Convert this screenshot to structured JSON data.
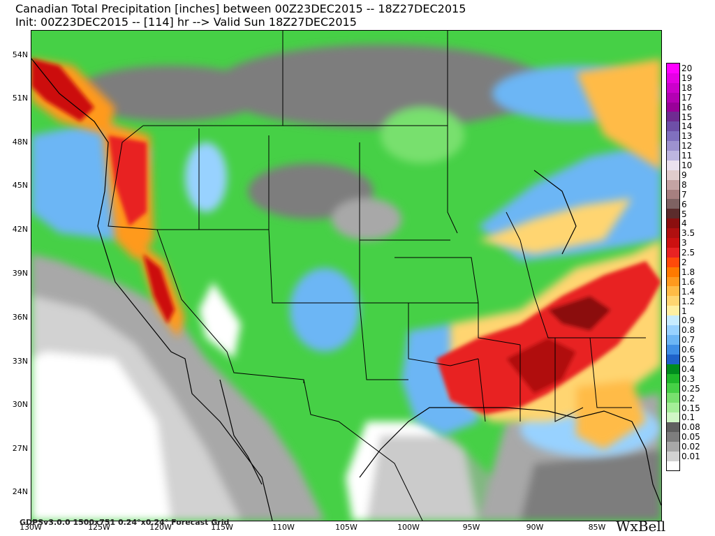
{
  "title_line1": "Canadian Total Precipitation [inches] between 00Z23DEC2015 -- 18Z27DEC2015",
  "title_line2": "Init: 00Z23DEC2015 -- [114] hr --> Valid Sun 18Z27DEC2015",
  "footer": "GDPSv3.0.0  1500x751  0.24°x0.24° Forecast Grid",
  "brand": "WxBell",
  "lat_labels": [
    "54N",
    "51N",
    "48N",
    "45N",
    "42N",
    "39N",
    "36N",
    "33N",
    "30N",
    "27N",
    "24N"
  ],
  "lon_labels": [
    "130W",
    "125W",
    "120W",
    "115W",
    "110W",
    "105W",
    "100W",
    "95W",
    "90W",
    "85W"
  ],
  "legend": [
    {
      "label": "20",
      "color": "#ff00ff"
    },
    {
      "label": "19",
      "color": "#e500e5"
    },
    {
      "label": "18",
      "color": "#cc00cc"
    },
    {
      "label": "17",
      "color": "#b300b3"
    },
    {
      "label": "16",
      "color": "#990099"
    },
    {
      "label": "15",
      "color": "#6f2b92"
    },
    {
      "label": "14",
      "color": "#6e4fa8"
    },
    {
      "label": "13",
      "color": "#8070be"
    },
    {
      "label": "12",
      "color": "#9d92cf"
    },
    {
      "label": "11",
      "color": "#bdb6e0"
    },
    {
      "label": "10",
      "color": "#ebe2ee"
    },
    {
      "label": "9",
      "color": "#e0cccc"
    },
    {
      "label": "8",
      "color": "#c4a3a3"
    },
    {
      "label": "7",
      "color": "#a67f7f"
    },
    {
      "label": "6",
      "color": "#7e6262"
    },
    {
      "label": "5",
      "color": "#5b2c2c"
    },
    {
      "label": "4",
      "color": "#8b0f0f"
    },
    {
      "label": "3.5",
      "color": "#b01010"
    },
    {
      "label": "3",
      "color": "#cc1111"
    },
    {
      "label": "2.5",
      "color": "#e82323"
    },
    {
      "label": "2",
      "color": "#ff4a0a"
    },
    {
      "label": "1.8",
      "color": "#ff7a00"
    },
    {
      "label": "1.6",
      "color": "#ff9a1e"
    },
    {
      "label": "1.4",
      "color": "#ffbb46"
    },
    {
      "label": "1.2",
      "color": "#ffd571"
    },
    {
      "label": "1",
      "color": "#ffefa2"
    },
    {
      "label": "0.9",
      "color": "#c7ecff"
    },
    {
      "label": "0.8",
      "color": "#98d2ff"
    },
    {
      "label": "0.7",
      "color": "#6cb6f5"
    },
    {
      "label": "0.6",
      "color": "#3f8fe6"
    },
    {
      "label": "0.5",
      "color": "#1f62c9"
    },
    {
      "label": "0.4",
      "color": "#008c1e"
    },
    {
      "label": "0.3",
      "color": "#1fb82a"
    },
    {
      "label": "0.25",
      "color": "#46d046"
    },
    {
      "label": "0.2",
      "color": "#78e06e"
    },
    {
      "label": "0.15",
      "color": "#a4ee98"
    },
    {
      "label": "0.1",
      "color": "#d0f7c6"
    },
    {
      "label": "0.08",
      "color": "#5f5f5f"
    },
    {
      "label": "0.05",
      "color": "#7d7d7d"
    },
    {
      "label": "0.02",
      "color": "#a8a8a8"
    },
    {
      "label": "0.01",
      "color": "#d2d2d2"
    },
    {
      "label": "",
      "color": "#ffffff"
    }
  ]
}
